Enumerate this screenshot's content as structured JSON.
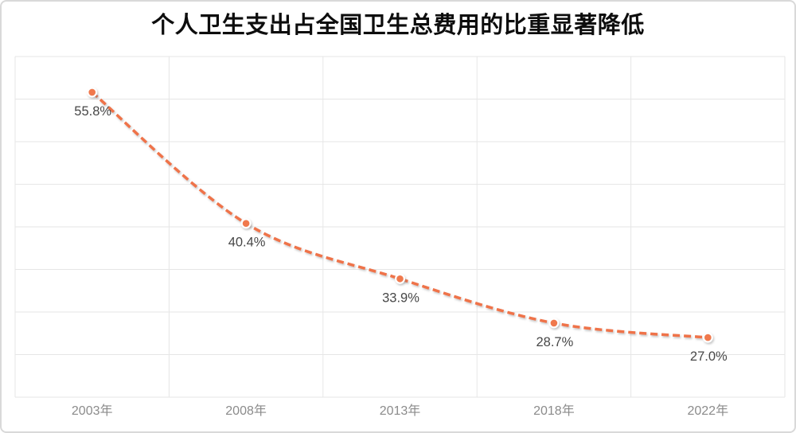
{
  "title": "个人卫生支出占全国卫生总费用的比重显著降低",
  "colors": {
    "accent_line": "#ef7349",
    "marker_fill": "#f0794e",
    "marker_ring": "#ffffff",
    "gridline": "#e6e6e6",
    "data_label": "#474747",
    "axis_label": "#8b8b8b",
    "title": "#0d0d0d",
    "card_border": "#d9d9d9",
    "background": "#ffffff"
  },
  "chart_data": {
    "type": "line",
    "title": "个人卫生支出占全国卫生总费用的比重显著降低",
    "categories": [
      "2003年",
      "2008年",
      "2013年",
      "2018年",
      "2022年"
    ],
    "values": [
      55.8,
      40.4,
      33.9,
      28.7,
      27.0
    ],
    "data_labels": [
      "55.8%",
      "40.4%",
      "33.9%",
      "28.7%",
      "27.0%"
    ],
    "xlabel": "",
    "ylabel": "",
    "ylim": [
      20,
      60
    ],
    "y_tick_step": 5,
    "y_axis_labels_visible": false,
    "grid": true,
    "legend": "none",
    "line_style": "dashed",
    "line_smooth": true,
    "marker": "circle",
    "data_label_position": "below"
  }
}
